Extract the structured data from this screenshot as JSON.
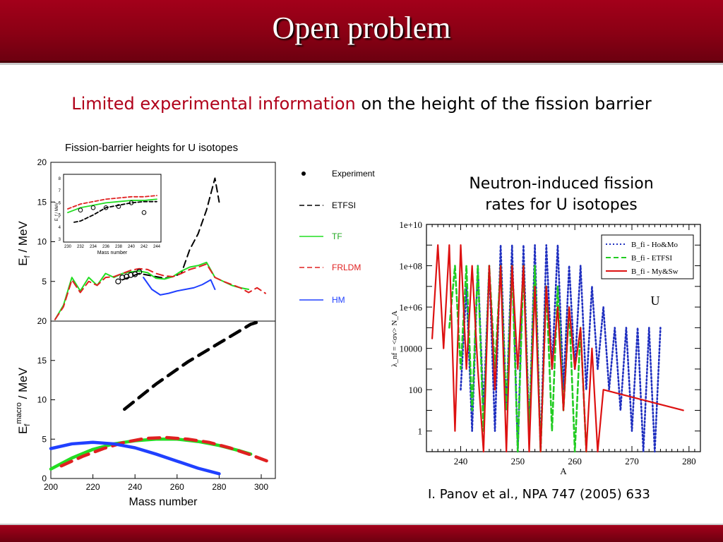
{
  "slide": {
    "title": "Open problem",
    "subtitle_highlight": "Limited experimental information",
    "subtitle_rest": " on the height of the fission barrier",
    "right_title": "Neutron-induced fission rates for U isotopes",
    "citation": "I. Panov et al., NPA 747 (2005) 633"
  },
  "chart_data": [
    {
      "type": "line",
      "title": "Fission-barrier heights for U isotopes",
      "ylabel": "E_f / MeV",
      "xlim": [
        200,
        305
      ],
      "ylim": [
        0,
        20
      ],
      "yticks": [
        "0",
        "5",
        "10",
        "15",
        "20"
      ],
      "legend": [
        "Experiment",
        "ETFSI",
        "TF",
        "FRLDM",
        "HM"
      ],
      "legend_placement": "right",
      "series": [
        {
          "name": "ETFSI",
          "color": "#000000",
          "x": [
            234,
            238,
            242,
            246,
            250,
            254,
            258,
            262,
            266,
            270,
            274,
            278,
            280
          ],
          "y": [
            5.2,
            5.6,
            6.0,
            5.8,
            5.6,
            5.4,
            5.6,
            6.0,
            9.0,
            11.0,
            14.0,
            18.0,
            15.0
          ]
        },
        {
          "name": "TF",
          "color": "#22dd22",
          "x": [
            202,
            206,
            210,
            214,
            218,
            222,
            226,
            230,
            234,
            238,
            242,
            246,
            250,
            254,
            258,
            262,
            266,
            270,
            274,
            278,
            282,
            286,
            290,
            294
          ],
          "y": [
            0.2,
            2.0,
            5.5,
            3.8,
            5.5,
            4.5,
            6.0,
            5.5,
            6.0,
            6.2,
            6.3,
            6.1,
            5.4,
            5.3,
            5.6,
            6.3,
            6.8,
            7.0,
            7.4,
            5.5,
            5.0,
            4.5,
            4.2,
            4.0
          ]
        },
        {
          "name": "FRLDM",
          "color": "#e02020",
          "x": [
            202,
            206,
            210,
            214,
            218,
            222,
            226,
            230,
            234,
            238,
            242,
            246,
            250,
            254,
            258,
            262,
            266,
            270,
            274,
            278,
            282,
            286,
            290,
            294,
            298,
            302
          ],
          "y": [
            0.2,
            1.8,
            5.2,
            3.6,
            5.0,
            4.5,
            5.5,
            5.6,
            6.0,
            6.4,
            6.6,
            6.5,
            6.0,
            5.7,
            5.6,
            6.0,
            6.5,
            6.8,
            7.2,
            5.5,
            5.0,
            4.6,
            4.2,
            3.6,
            4.2,
            3.5
          ]
        },
        {
          "name": "HM",
          "color": "#2040ff",
          "x": [
            244,
            248,
            252,
            256,
            260,
            264,
            268,
            272,
            276,
            278
          ],
          "y": [
            5.5,
            4.0,
            3.3,
            3.5,
            3.8,
            4.0,
            4.2,
            4.6,
            5.2,
            4.0
          ]
        }
      ],
      "experiment": {
        "name": "Experiment",
        "x": [
          232,
          234,
          236,
          238,
          240,
          242
        ],
        "y": [
          5.0,
          5.5,
          5.6,
          5.8,
          5.9,
          6.2
        ]
      },
      "inset": {
        "xlabel": "Mass number",
        "ylabel": "E_f / MeV",
        "xticks": [
          "230",
          "232",
          "234",
          "236",
          "238",
          "240",
          "242",
          "244"
        ],
        "yticks": [
          "3",
          "4",
          "5",
          "6",
          "7",
          "8"
        ]
      }
    },
    {
      "type": "line",
      "ylabel": "E_f^macro / MeV",
      "xlabel": "Mass number",
      "xlim": [
        200,
        305
      ],
      "ylim": [
        0,
        20
      ],
      "xticks": [
        "200",
        "220",
        "240",
        "260",
        "280",
        "300"
      ],
      "yticks": [
        "0",
        "5",
        "10",
        "15",
        "20"
      ],
      "series": [
        {
          "name": "ETFSI",
          "color": "#000000",
          "x": [
            235,
            250,
            265,
            280,
            295,
            300
          ],
          "y": [
            8.8,
            12.0,
            14.8,
            17.2,
            19.6,
            20.0
          ]
        },
        {
          "name": "TF",
          "color": "#22dd22",
          "x": [
            200,
            210,
            220,
            230,
            240,
            250,
            260,
            270,
            280,
            290,
            295
          ],
          "y": [
            1.2,
            2.6,
            3.7,
            4.4,
            4.8,
            5.0,
            5.0,
            4.7,
            4.2,
            3.5,
            3.1
          ]
        },
        {
          "name": "FRLDM",
          "color": "#e02020",
          "x": [
            205,
            215,
            225,
            235,
            245,
            255,
            265,
            275,
            285,
            295,
            305
          ],
          "y": [
            1.6,
            2.8,
            3.8,
            4.6,
            5.1,
            5.2,
            5.0,
            4.6,
            3.9,
            3.0,
            2.0
          ]
        },
        {
          "name": "HM",
          "color": "#2040ff",
          "x": [
            200,
            210,
            220,
            230,
            240,
            250,
            260,
            270,
            280
          ],
          "y": [
            3.8,
            4.4,
            4.6,
            4.4,
            3.9,
            3.1,
            2.2,
            1.3,
            0.6
          ]
        }
      ]
    },
    {
      "type": "line",
      "xlabel": "A",
      "ylabel": "λ_nf = <σv> N_A",
      "xlim": [
        234,
        282
      ],
      "ylog": true,
      "yrange_labels": [
        "1",
        "100",
        "10000",
        "1e+06",
        "1e+08",
        "1e+10"
      ],
      "xticks": [
        "240",
        "250",
        "260",
        "270",
        "280"
      ],
      "annotation": "U",
      "legend": [
        "B_fi - Ho&Mo",
        "B_fi - ETFSI",
        "B_fi - My&Sw"
      ],
      "legend_placement": "top-right",
      "series": [
        {
          "name": "B_fi - Ho&Mo",
          "color": "#2030c0",
          "style": "dotted",
          "x": [
            240,
            241,
            242,
            243,
            244,
            245,
            246,
            247,
            248,
            249,
            250,
            251,
            252,
            253,
            254,
            255,
            256,
            257,
            258,
            259,
            260,
            261,
            262,
            263,
            264,
            265,
            266,
            267,
            268,
            269,
            270,
            271,
            272,
            273,
            274,
            275
          ],
          "y": [
            100,
            10000000.0,
            1,
            100000000.0,
            10,
            100000000.0,
            1,
            1000000000.0,
            10,
            1000000000.0,
            0.1,
            1000000000.0,
            1,
            1000000000.0,
            0.1,
            1000000000.0,
            1000.0,
            1000000000.0,
            100.0,
            100000000.0,
            1000.0,
            100000000.0,
            100.0,
            10000000.0,
            1000.0,
            1000000.0,
            100.0,
            100000.0,
            10,
            100000.0,
            1,
            100000.0,
            0.1,
            100000.0,
            0.1,
            100000.0
          ]
        },
        {
          "name": "B_fi - ETFSI",
          "color": "#22cc22",
          "style": "dashed",
          "x": [
            238,
            239,
            240,
            241,
            242,
            243,
            244,
            245,
            246,
            247,
            248,
            249,
            250,
            251,
            252,
            253,
            254,
            255,
            256,
            257,
            258,
            259,
            260,
            261,
            262
          ],
          "y": [
            100000.0,
            100000000.0,
            1000.0,
            100000000.0,
            10,
            100000000.0,
            1,
            100000000.0,
            1000.0,
            100000000.0,
            10,
            100000000.0,
            0.1,
            100000000.0,
            1,
            100000000.0,
            0.1,
            10000000.0,
            1,
            10000000.0,
            10,
            1000000.0,
            0.1,
            100000.0,
            0.1
          ]
        },
        {
          "name": "B_fi - My&Sw",
          "color": "#dd1111",
          "style": "solid",
          "x": [
            235,
            236,
            237,
            238,
            239,
            240,
            241,
            242,
            243,
            244,
            245,
            246,
            247,
            248,
            249,
            250,
            251,
            252,
            253,
            254,
            255,
            256,
            257,
            258,
            259,
            260,
            261,
            262,
            263,
            264,
            265,
            279
          ],
          "y": [
            30000.0,
            1000000000.0,
            10000.0,
            1000000000.0,
            1,
            1000000000.0,
            1000.0,
            100000000.0,
            1000.0,
            0.1,
            100000000.0,
            100.0,
            100000000.0,
            0.1,
            100000000.0,
            1000.0,
            100000000.0,
            0.1,
            10000000.0,
            0.1,
            10000000.0,
            1000.0,
            1000000.0,
            10,
            1000000.0,
            1000.0,
            100000.0,
            0.1,
            10000.0,
            0.1,
            100.0,
            10
          ]
        }
      ]
    }
  ]
}
